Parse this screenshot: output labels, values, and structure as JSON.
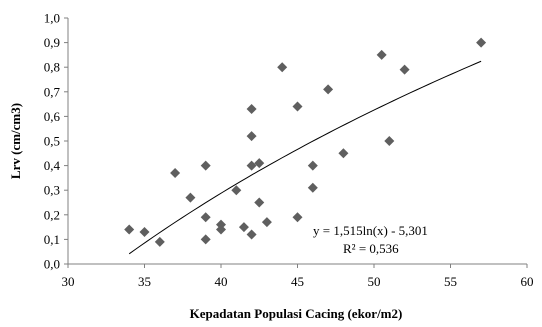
{
  "chart_data": {
    "type": "scatter",
    "title": "",
    "xlabel": "Kepadatan Populasi  Cacing (ekor/m2)",
    "ylabel": "Lrv (cm/cm3)",
    "xlim": [
      30,
      60
    ],
    "ylim": [
      0,
      1.0
    ],
    "x_ticks": [
      30,
      35,
      40,
      45,
      50,
      55,
      60
    ],
    "x_tick_labels": [
      "30",
      "35",
      "40",
      "45",
      "50",
      "55",
      "60"
    ],
    "y_ticks": [
      0,
      0.1,
      0.2,
      0.3,
      0.4,
      0.5,
      0.6,
      0.7,
      0.8,
      0.9,
      1.0
    ],
    "y_tick_labels": [
      "0,0",
      "0,1",
      "0,2",
      "0,3",
      "0,4",
      "0,5",
      "0,6",
      "0,7",
      "0,8",
      "0,9",
      "1,0"
    ],
    "grid": false,
    "legend": "none",
    "marker_color": "#5f5f5f",
    "trendline_color": "#000000",
    "points": [
      {
        "x": 34,
        "y": 0.14
      },
      {
        "x": 35,
        "y": 0.13
      },
      {
        "x": 36,
        "y": 0.09
      },
      {
        "x": 37,
        "y": 0.37
      },
      {
        "x": 38,
        "y": 0.27
      },
      {
        "x": 39,
        "y": 0.4
      },
      {
        "x": 39,
        "y": 0.19
      },
      {
        "x": 39,
        "y": 0.1
      },
      {
        "x": 40,
        "y": 0.16
      },
      {
        "x": 40,
        "y": 0.14
      },
      {
        "x": 41,
        "y": 0.3
      },
      {
        "x": 41.5,
        "y": 0.15
      },
      {
        "x": 42,
        "y": 0.12
      },
      {
        "x": 42,
        "y": 0.4
      },
      {
        "x": 42,
        "y": 0.52
      },
      {
        "x": 42,
        "y": 0.63
      },
      {
        "x": 42.5,
        "y": 0.41
      },
      {
        "x": 42.5,
        "y": 0.25
      },
      {
        "x": 43,
        "y": 0.17
      },
      {
        "x": 44,
        "y": 0.8
      },
      {
        "x": 45,
        "y": 0.64
      },
      {
        "x": 45,
        "y": 0.19
      },
      {
        "x": 46,
        "y": 0.4
      },
      {
        "x": 46,
        "y": 0.31
      },
      {
        "x": 47,
        "y": 0.71
      },
      {
        "x": 48,
        "y": 0.45
      },
      {
        "x": 50.5,
        "y": 0.85
      },
      {
        "x": 51,
        "y": 0.5
      },
      {
        "x": 52,
        "y": 0.79
      },
      {
        "x": 57,
        "y": 0.9
      }
    ],
    "trendline": {
      "type": "logarithmic",
      "a": 1.515,
      "b": -5.301,
      "x_start": 34,
      "x_end": 57,
      "equation_text": "y = 1,515ln(x) - 5,301",
      "r2_text": "R² = 0,536"
    }
  }
}
